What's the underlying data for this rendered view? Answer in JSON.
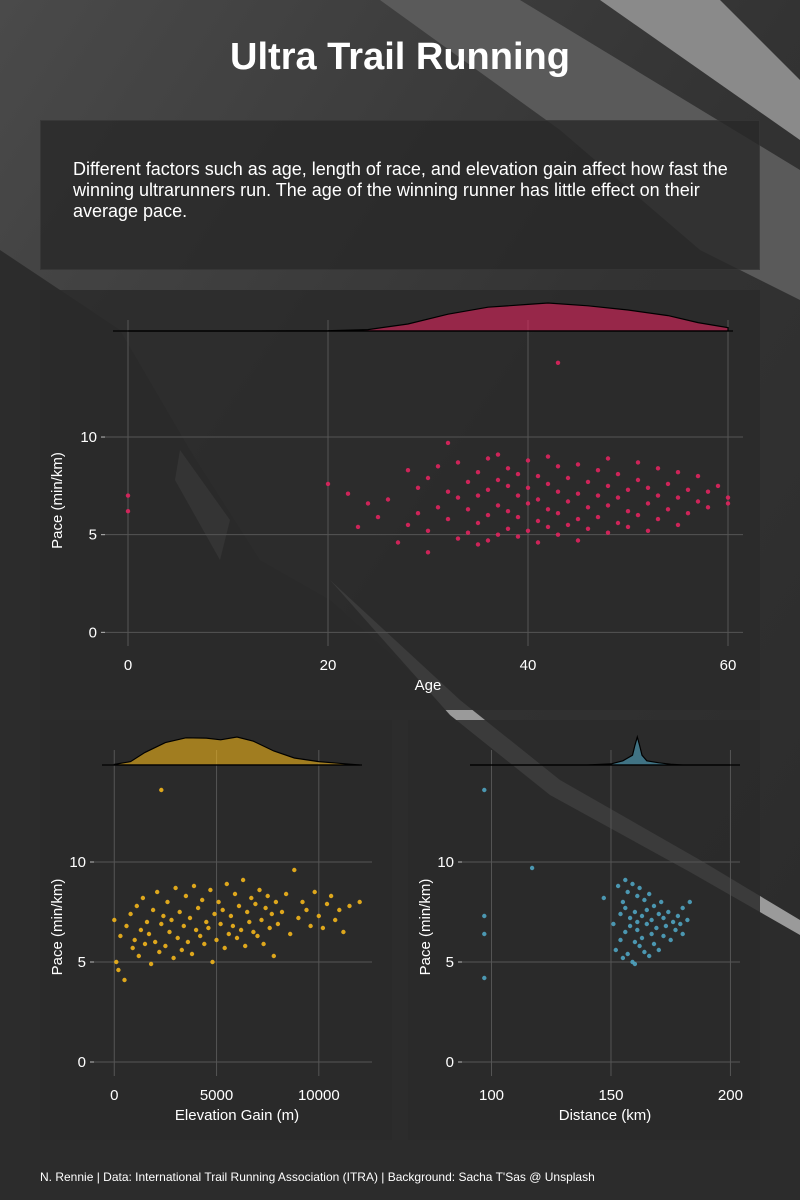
{
  "title": "Ultra Trail Running",
  "subtitle": "Different factors such as age, length of race, and elevation gain affect how fast the winning ultrarunners run. The age of the winning runner has little effect on their average pace.",
  "caption": "N. Rennie | Data: International Trail Running Association (ITRA) | Background: Sacha T'Sas @ Unsplash",
  "colors": {
    "age": "#e0245e",
    "elevation": "#f2b51b",
    "distance": "#4fa3c0",
    "panel_bg": "#2a2a2a",
    "grid": "#555555"
  },
  "chart_data": [
    {
      "id": "age",
      "type": "scatter",
      "title": "",
      "xlabel": "Age",
      "ylabel": "Pace (min/km)",
      "xlim": [
        -1.5,
        61.5
      ],
      "ylim": [
        -0.7,
        14.2
      ],
      "xticks": [
        0,
        20,
        40,
        60
      ],
      "yticks": [
        0,
        5,
        10
      ],
      "grid": true,
      "density": {
        "points": [
          [
            0,
            0.0
          ],
          [
            10,
            0.0
          ],
          [
            20,
            0.01
          ],
          [
            24,
            0.05
          ],
          [
            28,
            0.25
          ],
          [
            32,
            0.6
          ],
          [
            36,
            0.85
          ],
          [
            40,
            0.95
          ],
          [
            42,
            1.0
          ],
          [
            46,
            0.9
          ],
          [
            50,
            0.75
          ],
          [
            54,
            0.55
          ],
          [
            57,
            0.3
          ],
          [
            60,
            0.12
          ]
        ]
      },
      "points": [
        [
          0,
          7.0
        ],
        [
          0,
          6.2
        ],
        [
          20,
          7.6
        ],
        [
          22,
          7.1
        ],
        [
          23,
          5.4
        ],
        [
          24,
          6.6
        ],
        [
          25,
          5.9
        ],
        [
          26,
          6.8
        ],
        [
          27,
          4.6
        ],
        [
          28,
          5.5
        ],
        [
          28,
          8.3
        ],
        [
          29,
          6.1
        ],
        [
          29,
          7.4
        ],
        [
          30,
          4.1
        ],
        [
          30,
          5.2
        ],
        [
          30,
          7.9
        ],
        [
          31,
          6.4
        ],
        [
          31,
          8.5
        ],
        [
          32,
          9.7
        ],
        [
          32,
          5.8
        ],
        [
          32,
          7.2
        ],
        [
          33,
          4.8
        ],
        [
          33,
          6.9
        ],
        [
          33,
          8.7
        ],
        [
          34,
          5.1
        ],
        [
          34,
          6.3
        ],
        [
          34,
          7.7
        ],
        [
          35,
          4.5
        ],
        [
          35,
          5.6
        ],
        [
          35,
          7.0
        ],
        [
          35,
          8.2
        ],
        [
          36,
          4.7
        ],
        [
          36,
          6.0
        ],
        [
          36,
          7.3
        ],
        [
          36,
          8.9
        ],
        [
          37,
          5.0
        ],
        [
          37,
          6.5
        ],
        [
          37,
          7.8
        ],
        [
          37,
          9.1
        ],
        [
          38,
          5.3
        ],
        [
          38,
          6.2
        ],
        [
          38,
          7.5
        ],
        [
          38,
          8.4
        ],
        [
          39,
          4.9
        ],
        [
          39,
          5.9
        ],
        [
          39,
          7.0
        ],
        [
          39,
          8.1
        ],
        [
          40,
          5.2
        ],
        [
          40,
          6.6
        ],
        [
          40,
          7.4
        ],
        [
          40,
          8.8
        ],
        [
          41,
          4.6
        ],
        [
          41,
          5.7
        ],
        [
          41,
          6.8
        ],
        [
          41,
          8.0
        ],
        [
          42,
          5.4
        ],
        [
          42,
          6.3
        ],
        [
          42,
          7.6
        ],
        [
          42,
          9.0
        ],
        [
          43,
          13.8
        ],
        [
          43,
          5.0
        ],
        [
          43,
          6.1
        ],
        [
          43,
          7.2
        ],
        [
          43,
          8.5
        ],
        [
          44,
          5.5
        ],
        [
          44,
          6.7
        ],
        [
          44,
          7.9
        ],
        [
          45,
          4.7
        ],
        [
          45,
          5.8
        ],
        [
          45,
          7.1
        ],
        [
          45,
          8.6
        ],
        [
          46,
          5.3
        ],
        [
          46,
          6.4
        ],
        [
          46,
          7.7
        ],
        [
          47,
          5.9
        ],
        [
          47,
          7.0
        ],
        [
          47,
          8.3
        ],
        [
          48,
          5.1
        ],
        [
          48,
          6.5
        ],
        [
          48,
          7.5
        ],
        [
          48,
          8.9
        ],
        [
          49,
          5.6
        ],
        [
          49,
          6.9
        ],
        [
          49,
          8.1
        ],
        [
          50,
          5.4
        ],
        [
          50,
          6.2
        ],
        [
          50,
          7.3
        ],
        [
          51,
          6.0
        ],
        [
          51,
          7.8
        ],
        [
          51,
          8.7
        ],
        [
          52,
          5.2
        ],
        [
          52,
          6.6
        ],
        [
          52,
          7.4
        ],
        [
          53,
          5.8
        ],
        [
          53,
          7.0
        ],
        [
          53,
          8.4
        ],
        [
          54,
          6.3
        ],
        [
          54,
          7.6
        ],
        [
          55,
          5.5
        ],
        [
          55,
          6.9
        ],
        [
          55,
          8.2
        ],
        [
          56,
          6.1
        ],
        [
          56,
          7.3
        ],
        [
          57,
          6.7
        ],
        [
          57,
          8.0
        ],
        [
          58,
          6.4
        ],
        [
          58,
          7.2
        ],
        [
          59,
          7.5
        ],
        [
          60,
          6.9
        ],
        [
          60,
          6.6
        ]
      ]
    },
    {
      "id": "elevation",
      "type": "scatter",
      "title": "",
      "xlabel": "Elevation Gain (m)",
      "ylabel": "Pace (min/km)",
      "xlim": [
        -600,
        12600
      ],
      "ylim": [
        -0.7,
        14.2
      ],
      "xticks": [
        0,
        5000,
        10000
      ],
      "yticks": [
        0,
        5,
        10
      ],
      "grid": true,
      "density": {
        "points": [
          [
            0,
            0.02
          ],
          [
            800,
            0.12
          ],
          [
            1500,
            0.45
          ],
          [
            2500,
            0.8
          ],
          [
            3500,
            0.97
          ],
          [
            4500,
            0.96
          ],
          [
            5200,
            0.9
          ],
          [
            6000,
            1.0
          ],
          [
            6800,
            0.85
          ],
          [
            7800,
            0.5
          ],
          [
            8800,
            0.25
          ],
          [
            10000,
            0.12
          ],
          [
            11000,
            0.06
          ],
          [
            12000,
            0.0
          ]
        ]
      },
      "points": [
        [
          2300,
          13.6
        ],
        [
          0,
          7.1
        ],
        [
          100,
          5.0
        ],
        [
          200,
          4.6
        ],
        [
          300,
          6.3
        ],
        [
          500,
          4.1
        ],
        [
          600,
          6.8
        ],
        [
          800,
          7.4
        ],
        [
          900,
          5.7
        ],
        [
          1000,
          6.1
        ],
        [
          1100,
          7.8
        ],
        [
          1200,
          5.3
        ],
        [
          1300,
          6.6
        ],
        [
          1400,
          8.2
        ],
        [
          1500,
          5.9
        ],
        [
          1600,
          7.0
        ],
        [
          1700,
          6.4
        ],
        [
          1800,
          4.9
        ],
        [
          1900,
          7.6
        ],
        [
          2000,
          6.0
        ],
        [
          2100,
          8.5
        ],
        [
          2200,
          5.5
        ],
        [
          2300,
          6.9
        ],
        [
          2400,
          7.3
        ],
        [
          2500,
          5.8
        ],
        [
          2600,
          8.0
        ],
        [
          2700,
          6.5
        ],
        [
          2800,
          7.1
        ],
        [
          2900,
          5.2
        ],
        [
          3000,
          8.7
        ],
        [
          3100,
          6.2
        ],
        [
          3200,
          7.5
        ],
        [
          3300,
          5.6
        ],
        [
          3400,
          6.8
        ],
        [
          3500,
          8.3
        ],
        [
          3600,
          6.0
        ],
        [
          3700,
          7.2
        ],
        [
          3800,
          5.4
        ],
        [
          3900,
          8.8
        ],
        [
          4000,
          6.6
        ],
        [
          4100,
          7.7
        ],
        [
          4200,
          6.3
        ],
        [
          4300,
          8.1
        ],
        [
          4400,
          5.9
        ],
        [
          4500,
          7.0
        ],
        [
          4600,
          6.7
        ],
        [
          4700,
          8.6
        ],
        [
          4800,
          5.0
        ],
        [
          4900,
          7.4
        ],
        [
          5000,
          6.1
        ],
        [
          5100,
          8.0
        ],
        [
          5200,
          6.9
        ],
        [
          5300,
          7.6
        ],
        [
          5400,
          5.7
        ],
        [
          5500,
          8.9
        ],
        [
          5600,
          6.4
        ],
        [
          5700,
          7.3
        ],
        [
          5800,
          6.8
        ],
        [
          5900,
          8.4
        ],
        [
          6000,
          6.2
        ],
        [
          6100,
          7.8
        ],
        [
          6200,
          6.6
        ],
        [
          6300,
          9.1
        ],
        [
          6400,
          5.8
        ],
        [
          6500,
          7.5
        ],
        [
          6600,
          7.0
        ],
        [
          6700,
          8.2
        ],
        [
          6800,
          6.5
        ],
        [
          6900,
          7.9
        ],
        [
          7000,
          6.3
        ],
        [
          7100,
          8.6
        ],
        [
          7200,
          7.1
        ],
        [
          7300,
          5.9
        ],
        [
          7400,
          7.7
        ],
        [
          7500,
          8.3
        ],
        [
          7600,
          6.7
        ],
        [
          7700,
          7.4
        ],
        [
          7800,
          5.3
        ],
        [
          7900,
          8.0
        ],
        [
          8000,
          6.9
        ],
        [
          8200,
          7.5
        ],
        [
          8400,
          8.4
        ],
        [
          8600,
          6.4
        ],
        [
          8800,
          9.6
        ],
        [
          9000,
          7.2
        ],
        [
          9200,
          8.0
        ],
        [
          9400,
          7.6
        ],
        [
          9600,
          6.8
        ],
        [
          9800,
          8.5
        ],
        [
          10000,
          7.3
        ],
        [
          10200,
          6.7
        ],
        [
          10400,
          7.9
        ],
        [
          10600,
          8.3
        ],
        [
          10800,
          7.1
        ],
        [
          11000,
          7.6
        ],
        [
          11200,
          6.5
        ],
        [
          11500,
          7.8
        ],
        [
          12000,
          8.0
        ]
      ]
    },
    {
      "id": "distance",
      "type": "scatter",
      "title": "",
      "xlabel": "Distance (km)",
      "ylabel": "Pace (min/km)",
      "xlim": [
        91,
        204
      ],
      "ylim": [
        -0.7,
        14.2
      ],
      "xticks": [
        100,
        150,
        200
      ],
      "yticks": [
        0,
        5,
        10
      ],
      "grid": true,
      "density": {
        "points": [
          [
            91,
            0.0
          ],
          [
            140,
            0.0
          ],
          [
            150,
            0.04
          ],
          [
            155,
            0.15
          ],
          [
            157,
            0.25
          ],
          [
            159,
            0.35
          ],
          [
            160,
            0.7
          ],
          [
            161,
            1.0
          ],
          [
            162,
            0.7
          ],
          [
            163,
            0.35
          ],
          [
            165,
            0.15
          ],
          [
            170,
            0.08
          ],
          [
            175,
            0.03
          ],
          [
            180,
            0.0
          ],
          [
            204,
            0.0
          ]
        ]
      },
      "points": [
        [
          97,
          13.6
        ],
        [
          97,
          7.3
        ],
        [
          97,
          6.4
        ],
        [
          97,
          4.2
        ],
        [
          117,
          9.7
        ],
        [
          147,
          8.2
        ],
        [
          151,
          6.9
        ],
        [
          152,
          5.6
        ],
        [
          153,
          8.8
        ],
        [
          154,
          7.4
        ],
        [
          154,
          6.1
        ],
        [
          155,
          8.0
        ],
        [
          155,
          5.2
        ],
        [
          156,
          9.1
        ],
        [
          156,
          7.7
        ],
        [
          156,
          6.5
        ],
        [
          157,
          5.4
        ],
        [
          157,
          8.5
        ],
        [
          158,
          6.8
        ],
        [
          158,
          7.2
        ],
        [
          159,
          5.0
        ],
        [
          159,
          8.9
        ],
        [
          160,
          6.0
        ],
        [
          160,
          7.5
        ],
        [
          160,
          4.9
        ],
        [
          161,
          8.3
        ],
        [
          161,
          6.6
        ],
        [
          161,
          7.0
        ],
        [
          162,
          5.8
        ],
        [
          162,
          8.7
        ],
        [
          163,
          7.3
        ],
        [
          163,
          6.2
        ],
        [
          164,
          5.5
        ],
        [
          164,
          8.1
        ],
        [
          165,
          6.9
        ],
        [
          165,
          7.6
        ],
        [
          166,
          5.3
        ],
        [
          166,
          8.4
        ],
        [
          167,
          6.4
        ],
        [
          167,
          7.1
        ],
        [
          168,
          7.8
        ],
        [
          168,
          5.9
        ],
        [
          169,
          6.7
        ],
        [
          170,
          7.4
        ],
        [
          170,
          5.6
        ],
        [
          171,
          8.0
        ],
        [
          172,
          6.3
        ],
        [
          172,
          7.2
        ],
        [
          173,
          6.8
        ],
        [
          174,
          7.5
        ],
        [
          175,
          6.1
        ],
        [
          176,
          7.0
        ],
        [
          177,
          6.6
        ],
        [
          178,
          7.3
        ],
        [
          179,
          6.9
        ],
        [
          180,
          7.7
        ],
        [
          180,
          6.4
        ],
        [
          182,
          7.1
        ],
        [
          183,
          8.0
        ]
      ]
    }
  ]
}
